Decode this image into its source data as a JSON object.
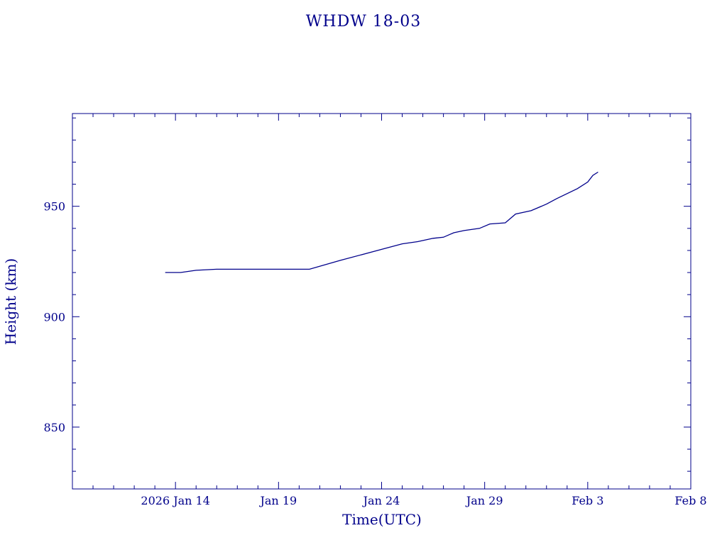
{
  "chart_data": {
    "type": "line",
    "title": "WHDW 18-03",
    "xlabel": "Time(UTC)",
    "ylabel": "Height (km)",
    "color": "#00008B",
    "grid": false,
    "xlim": [
      "2026-01-09",
      "2026-02-08"
    ],
    "ylim": [
      822,
      992
    ],
    "x_ticks": [
      {
        "date": "2026-01-14",
        "label": "2026 Jan 14"
      },
      {
        "date": "2026-01-19",
        "label": "Jan 19"
      },
      {
        "date": "2026-01-24",
        "label": "Jan 24"
      },
      {
        "date": "2026-01-29",
        "label": "Jan 29"
      },
      {
        "date": "2026-02-03",
        "label": "Feb  3"
      },
      {
        "date": "2026-02-08",
        "label": "Feb  8"
      }
    ],
    "y_ticks": [
      850,
      900,
      950
    ],
    "series": [
      {
        "x": [
          "2026-01-13T12:00",
          "2026-01-14T06:00",
          "2026-01-15T00:00",
          "2026-01-16T00:00",
          "2026-01-17T00:00",
          "2026-01-20T12:00",
          "2026-01-22T00:00",
          "2026-01-24T00:00",
          "2026-01-25T00:00",
          "2026-01-25T18:00",
          "2026-01-26T12:00",
          "2026-01-27T00:00",
          "2026-01-27T12:00",
          "2026-01-28T00:00",
          "2026-01-28T18:00",
          "2026-01-29T06:00",
          "2026-01-30T00:00",
          "2026-01-30T12:00",
          "2026-01-31T06:00",
          "2026-02-01T00:00",
          "2026-02-01T12:00",
          "2026-02-02T12:00",
          "2026-02-03T00:00",
          "2026-02-03T06:00",
          "2026-02-03T12:00"
        ],
        "y": [
          920,
          920,
          921,
          921.5,
          921.5,
          921.5,
          925.5,
          930.5,
          933,
          934,
          935.5,
          936,
          938,
          939,
          940,
          942,
          942.5,
          946.5,
          948,
          951,
          953.5,
          958,
          961,
          964,
          965.5
        ]
      }
    ]
  }
}
